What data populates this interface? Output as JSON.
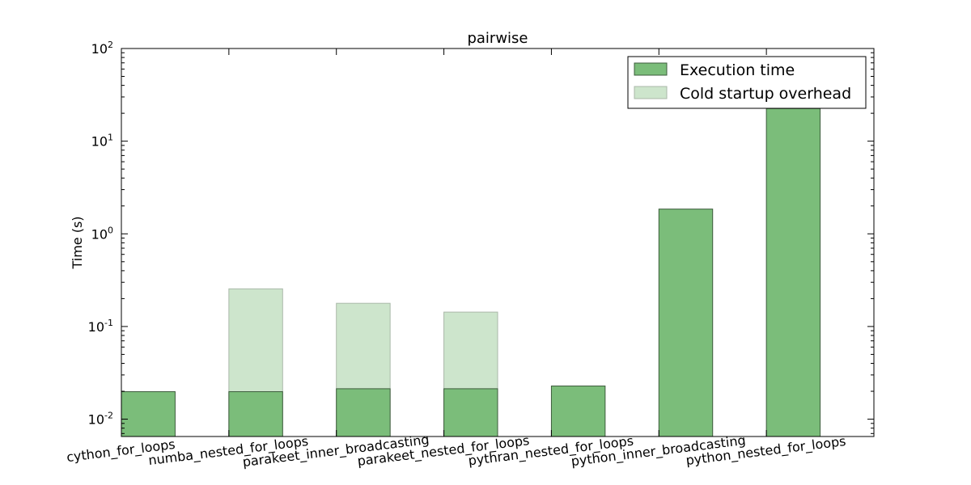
{
  "chart_data": {
    "type": "bar",
    "title": "pairwise",
    "xlabel": "",
    "ylabel": "Time (s)",
    "yscale": "log",
    "ylim": [
      0.0065,
      100
    ],
    "yticks": [
      {
        "value": 0.01,
        "base": "10",
        "exp": "-2"
      },
      {
        "value": 0.1,
        "base": "10",
        "exp": "-1"
      },
      {
        "value": 1,
        "base": "10",
        "exp": "0"
      },
      {
        "value": 10,
        "base": "10",
        "exp": "1"
      },
      {
        "value": 100,
        "base": "10",
        "exp": "2"
      }
    ],
    "categories": [
      "cython_for_loops",
      "numba_nested_for_loops",
      "parakeet_inner_broadcasting",
      "parakeet_nested_for_loops",
      "pythran_nested_for_loops",
      "python_inner_broadcasting",
      "python_nested_for_loops"
    ],
    "series": [
      {
        "name": "Execution time",
        "color": "#7bbd7a",
        "values": [
          0.0198,
          0.0198,
          0.0213,
          0.0213,
          0.0228,
          1.85,
          22.5
        ]
      },
      {
        "name": "Cold startup overhead",
        "color": "#cde5cc",
        "values": [
          null,
          0.255,
          0.178,
          0.143,
          null,
          null,
          null
        ]
      }
    ],
    "grid": false,
    "legend_position": "top-right"
  }
}
